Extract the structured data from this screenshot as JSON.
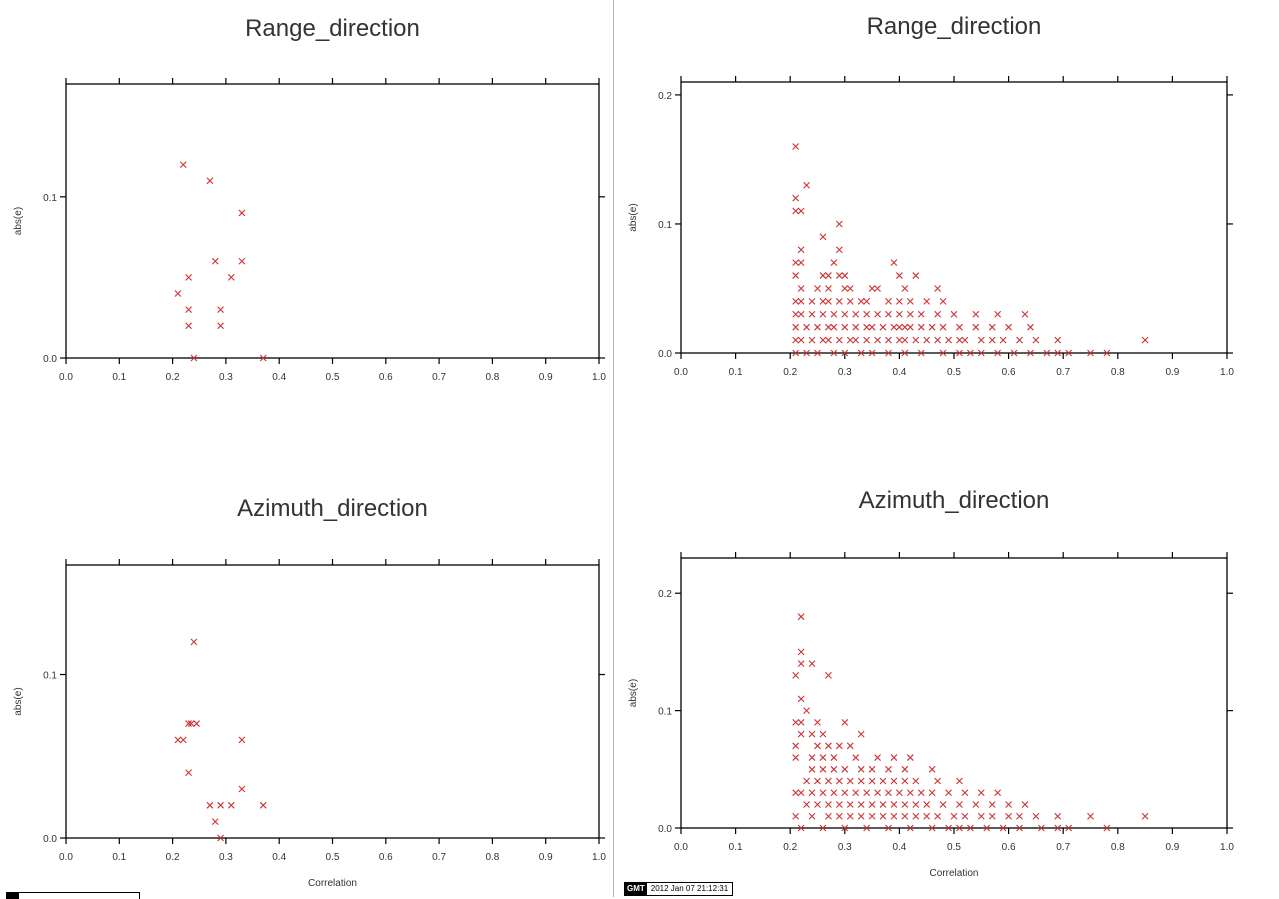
{
  "colors": {
    "marker": "#cc3333",
    "axis": "#000000",
    "text": "#333333"
  },
  "footer": {
    "logo": "GMT",
    "timestamp": "2012 Jan 07 21:12:31"
  },
  "chart_data": [
    {
      "type": "scatter",
      "title": "Range_direction",
      "xlabel": "",
      "ylabel": "abs(e)",
      "xlim": [
        0,
        1
      ],
      "ylim": [
        0,
        0.17
      ],
      "xticks": [
        0.0,
        0.1,
        0.2,
        0.3,
        0.4,
        0.5,
        0.6,
        0.7,
        0.8,
        0.9,
        1.0
      ],
      "yticks": [
        0.0,
        0.1
      ],
      "marker": "x",
      "points": [
        [
          0.22,
          0.12
        ],
        [
          0.27,
          0.11
        ],
        [
          0.33,
          0.09
        ],
        [
          0.28,
          0.06
        ],
        [
          0.33,
          0.06
        ],
        [
          0.23,
          0.05
        ],
        [
          0.31,
          0.05
        ],
        [
          0.21,
          0.04
        ],
        [
          0.23,
          0.03
        ],
        [
          0.29,
          0.03
        ],
        [
          0.23,
          0.02
        ],
        [
          0.29,
          0.02
        ],
        [
          0.24,
          0.0
        ],
        [
          0.37,
          0.0
        ]
      ]
    },
    {
      "type": "scatter",
      "title": "Range_direction",
      "xlabel": "",
      "ylabel": "abs(e)",
      "xlim": [
        0,
        1
      ],
      "ylim": [
        0,
        0.21
      ],
      "xticks": [
        0.0,
        0.1,
        0.2,
        0.3,
        0.4,
        0.5,
        0.6,
        0.7,
        0.8,
        0.9,
        1.0
      ],
      "yticks": [
        0.0,
        0.1,
        0.2
      ],
      "marker": "x",
      "points": [
        [
          0.21,
          0.16
        ],
        [
          0.23,
          0.13
        ],
        [
          0.21,
          0.12
        ],
        [
          0.21,
          0.11
        ],
        [
          0.22,
          0.11
        ],
        [
          0.29,
          0.1
        ],
        [
          0.26,
          0.09
        ],
        [
          0.22,
          0.08
        ],
        [
          0.29,
          0.08
        ],
        [
          0.21,
          0.07
        ],
        [
          0.22,
          0.07
        ],
        [
          0.28,
          0.07
        ],
        [
          0.39,
          0.07
        ],
        [
          0.21,
          0.06
        ],
        [
          0.26,
          0.06
        ],
        [
          0.27,
          0.06
        ],
        [
          0.29,
          0.06
        ],
        [
          0.3,
          0.06
        ],
        [
          0.4,
          0.06
        ],
        [
          0.43,
          0.06
        ],
        [
          0.22,
          0.05
        ],
        [
          0.25,
          0.05
        ],
        [
          0.27,
          0.05
        ],
        [
          0.3,
          0.05
        ],
        [
          0.31,
          0.05
        ],
        [
          0.35,
          0.05
        ],
        [
          0.36,
          0.05
        ],
        [
          0.41,
          0.05
        ],
        [
          0.47,
          0.05
        ],
        [
          0.21,
          0.04
        ],
        [
          0.22,
          0.04
        ],
        [
          0.24,
          0.04
        ],
        [
          0.26,
          0.04
        ],
        [
          0.27,
          0.04
        ],
        [
          0.29,
          0.04
        ],
        [
          0.31,
          0.04
        ],
        [
          0.33,
          0.04
        ],
        [
          0.34,
          0.04
        ],
        [
          0.38,
          0.04
        ],
        [
          0.4,
          0.04
        ],
        [
          0.42,
          0.04
        ],
        [
          0.45,
          0.04
        ],
        [
          0.48,
          0.04
        ],
        [
          0.21,
          0.03
        ],
        [
          0.22,
          0.03
        ],
        [
          0.24,
          0.03
        ],
        [
          0.26,
          0.03
        ],
        [
          0.28,
          0.03
        ],
        [
          0.3,
          0.03
        ],
        [
          0.32,
          0.03
        ],
        [
          0.34,
          0.03
        ],
        [
          0.36,
          0.03
        ],
        [
          0.38,
          0.03
        ],
        [
          0.4,
          0.03
        ],
        [
          0.42,
          0.03
        ],
        [
          0.44,
          0.03
        ],
        [
          0.47,
          0.03
        ],
        [
          0.5,
          0.03
        ],
        [
          0.54,
          0.03
        ],
        [
          0.58,
          0.03
        ],
        [
          0.63,
          0.03
        ],
        [
          0.21,
          0.02
        ],
        [
          0.23,
          0.02
        ],
        [
          0.25,
          0.02
        ],
        [
          0.27,
          0.02
        ],
        [
          0.28,
          0.02
        ],
        [
          0.3,
          0.02
        ],
        [
          0.32,
          0.02
        ],
        [
          0.34,
          0.02
        ],
        [
          0.35,
          0.02
        ],
        [
          0.37,
          0.02
        ],
        [
          0.39,
          0.02
        ],
        [
          0.4,
          0.02
        ],
        [
          0.41,
          0.02
        ],
        [
          0.42,
          0.02
        ],
        [
          0.44,
          0.02
        ],
        [
          0.46,
          0.02
        ],
        [
          0.48,
          0.02
        ],
        [
          0.51,
          0.02
        ],
        [
          0.54,
          0.02
        ],
        [
          0.57,
          0.02
        ],
        [
          0.6,
          0.02
        ],
        [
          0.64,
          0.02
        ],
        [
          0.21,
          0.01
        ],
        [
          0.22,
          0.01
        ],
        [
          0.24,
          0.01
        ],
        [
          0.26,
          0.01
        ],
        [
          0.27,
          0.01
        ],
        [
          0.29,
          0.01
        ],
        [
          0.31,
          0.01
        ],
        [
          0.32,
          0.01
        ],
        [
          0.34,
          0.01
        ],
        [
          0.36,
          0.01
        ],
        [
          0.38,
          0.01
        ],
        [
          0.4,
          0.01
        ],
        [
          0.41,
          0.01
        ],
        [
          0.43,
          0.01
        ],
        [
          0.45,
          0.01
        ],
        [
          0.47,
          0.01
        ],
        [
          0.49,
          0.01
        ],
        [
          0.51,
          0.01
        ],
        [
          0.52,
          0.01
        ],
        [
          0.55,
          0.01
        ],
        [
          0.57,
          0.01
        ],
        [
          0.59,
          0.01
        ],
        [
          0.62,
          0.01
        ],
        [
          0.65,
          0.01
        ],
        [
          0.69,
          0.01
        ],
        [
          0.85,
          0.01
        ],
        [
          0.21,
          0.0
        ],
        [
          0.23,
          0.0
        ],
        [
          0.25,
          0.0
        ],
        [
          0.28,
          0.0
        ],
        [
          0.3,
          0.0
        ],
        [
          0.33,
          0.0
        ],
        [
          0.35,
          0.0
        ],
        [
          0.38,
          0.0
        ],
        [
          0.41,
          0.0
        ],
        [
          0.44,
          0.0
        ],
        [
          0.48,
          0.0
        ],
        [
          0.51,
          0.0
        ],
        [
          0.53,
          0.0
        ],
        [
          0.55,
          0.0
        ],
        [
          0.58,
          0.0
        ],
        [
          0.61,
          0.0
        ],
        [
          0.64,
          0.0
        ],
        [
          0.67,
          0.0
        ],
        [
          0.69,
          0.0
        ],
        [
          0.71,
          0.0
        ],
        [
          0.75,
          0.0
        ],
        [
          0.78,
          0.0
        ]
      ]
    },
    {
      "type": "scatter",
      "title": "Azimuth_direction",
      "xlabel": "Correlation",
      "ylabel": "abs(e)",
      "xlim": [
        0,
        1
      ],
      "ylim": [
        0,
        0.167
      ],
      "xticks": [
        0.0,
        0.1,
        0.2,
        0.3,
        0.4,
        0.5,
        0.6,
        0.7,
        0.8,
        0.9,
        1.0
      ],
      "yticks": [
        0.0,
        0.1
      ],
      "marker": "x",
      "points": [
        [
          0.24,
          0.12
        ],
        [
          0.23,
          0.07
        ],
        [
          0.235,
          0.07
        ],
        [
          0.245,
          0.07
        ],
        [
          0.21,
          0.06
        ],
        [
          0.22,
          0.06
        ],
        [
          0.33,
          0.06
        ],
        [
          0.23,
          0.04
        ],
        [
          0.33,
          0.03
        ],
        [
          0.27,
          0.02
        ],
        [
          0.29,
          0.02
        ],
        [
          0.31,
          0.02
        ],
        [
          0.37,
          0.02
        ],
        [
          0.28,
          0.01
        ],
        [
          0.29,
          0.0
        ]
      ]
    },
    {
      "type": "scatter",
      "title": "Azimuth_direction",
      "xlabel": "Correlation",
      "ylabel": "abs(e)",
      "xlim": [
        0,
        1
      ],
      "ylim": [
        0,
        0.23
      ],
      "xticks": [
        0.0,
        0.1,
        0.2,
        0.3,
        0.4,
        0.5,
        0.6,
        0.7,
        0.8,
        0.9,
        1.0
      ],
      "yticks": [
        0.0,
        0.1,
        0.2
      ],
      "marker": "x",
      "points": [
        [
          0.22,
          0.18
        ],
        [
          0.22,
          0.15
        ],
        [
          0.22,
          0.14
        ],
        [
          0.24,
          0.14
        ],
        [
          0.21,
          0.13
        ],
        [
          0.27,
          0.13
        ],
        [
          0.22,
          0.11
        ],
        [
          0.23,
          0.1
        ],
        [
          0.21,
          0.09
        ],
        [
          0.22,
          0.09
        ],
        [
          0.25,
          0.09
        ],
        [
          0.3,
          0.09
        ],
        [
          0.22,
          0.08
        ],
        [
          0.24,
          0.08
        ],
        [
          0.26,
          0.08
        ],
        [
          0.33,
          0.08
        ],
        [
          0.21,
          0.07
        ],
        [
          0.25,
          0.07
        ],
        [
          0.27,
          0.07
        ],
        [
          0.29,
          0.07
        ],
        [
          0.31,
          0.07
        ],
        [
          0.21,
          0.06
        ],
        [
          0.24,
          0.06
        ],
        [
          0.26,
          0.06
        ],
        [
          0.28,
          0.06
        ],
        [
          0.32,
          0.06
        ],
        [
          0.36,
          0.06
        ],
        [
          0.39,
          0.06
        ],
        [
          0.42,
          0.06
        ],
        [
          0.24,
          0.05
        ],
        [
          0.26,
          0.05
        ],
        [
          0.28,
          0.05
        ],
        [
          0.3,
          0.05
        ],
        [
          0.33,
          0.05
        ],
        [
          0.35,
          0.05
        ],
        [
          0.38,
          0.05
        ],
        [
          0.41,
          0.05
        ],
        [
          0.46,
          0.05
        ],
        [
          0.23,
          0.04
        ],
        [
          0.25,
          0.04
        ],
        [
          0.27,
          0.04
        ],
        [
          0.29,
          0.04
        ],
        [
          0.31,
          0.04
        ],
        [
          0.33,
          0.04
        ],
        [
          0.35,
          0.04
        ],
        [
          0.37,
          0.04
        ],
        [
          0.39,
          0.04
        ],
        [
          0.41,
          0.04
        ],
        [
          0.43,
          0.04
        ],
        [
          0.47,
          0.04
        ],
        [
          0.51,
          0.04
        ],
        [
          0.21,
          0.03
        ],
        [
          0.22,
          0.03
        ],
        [
          0.24,
          0.03
        ],
        [
          0.26,
          0.03
        ],
        [
          0.28,
          0.03
        ],
        [
          0.3,
          0.03
        ],
        [
          0.32,
          0.03
        ],
        [
          0.34,
          0.03
        ],
        [
          0.36,
          0.03
        ],
        [
          0.38,
          0.03
        ],
        [
          0.4,
          0.03
        ],
        [
          0.42,
          0.03
        ],
        [
          0.44,
          0.03
        ],
        [
          0.46,
          0.03
        ],
        [
          0.49,
          0.03
        ],
        [
          0.52,
          0.03
        ],
        [
          0.55,
          0.03
        ],
        [
          0.58,
          0.03
        ],
        [
          0.23,
          0.02
        ],
        [
          0.25,
          0.02
        ],
        [
          0.27,
          0.02
        ],
        [
          0.29,
          0.02
        ],
        [
          0.31,
          0.02
        ],
        [
          0.33,
          0.02
        ],
        [
          0.35,
          0.02
        ],
        [
          0.37,
          0.02
        ],
        [
          0.39,
          0.02
        ],
        [
          0.41,
          0.02
        ],
        [
          0.43,
          0.02
        ],
        [
          0.45,
          0.02
        ],
        [
          0.48,
          0.02
        ],
        [
          0.51,
          0.02
        ],
        [
          0.54,
          0.02
        ],
        [
          0.57,
          0.02
        ],
        [
          0.6,
          0.02
        ],
        [
          0.63,
          0.02
        ],
        [
          0.21,
          0.01
        ],
        [
          0.24,
          0.01
        ],
        [
          0.27,
          0.01
        ],
        [
          0.29,
          0.01
        ],
        [
          0.31,
          0.01
        ],
        [
          0.33,
          0.01
        ],
        [
          0.35,
          0.01
        ],
        [
          0.37,
          0.01
        ],
        [
          0.39,
          0.01
        ],
        [
          0.41,
          0.01
        ],
        [
          0.43,
          0.01
        ],
        [
          0.45,
          0.01
        ],
        [
          0.47,
          0.01
        ],
        [
          0.5,
          0.01
        ],
        [
          0.52,
          0.01
        ],
        [
          0.55,
          0.01
        ],
        [
          0.57,
          0.01
        ],
        [
          0.6,
          0.01
        ],
        [
          0.62,
          0.01
        ],
        [
          0.65,
          0.01
        ],
        [
          0.69,
          0.01
        ],
        [
          0.75,
          0.01
        ],
        [
          0.85,
          0.01
        ],
        [
          0.22,
          0.0
        ],
        [
          0.26,
          0.0
        ],
        [
          0.3,
          0.0
        ],
        [
          0.34,
          0.0
        ],
        [
          0.38,
          0.0
        ],
        [
          0.42,
          0.0
        ],
        [
          0.46,
          0.0
        ],
        [
          0.49,
          0.0
        ],
        [
          0.51,
          0.0
        ],
        [
          0.53,
          0.0
        ],
        [
          0.56,
          0.0
        ],
        [
          0.59,
          0.0
        ],
        [
          0.62,
          0.0
        ],
        [
          0.66,
          0.0
        ],
        [
          0.69,
          0.0
        ],
        [
          0.71,
          0.0
        ],
        [
          0.78,
          0.0
        ]
      ]
    }
  ]
}
